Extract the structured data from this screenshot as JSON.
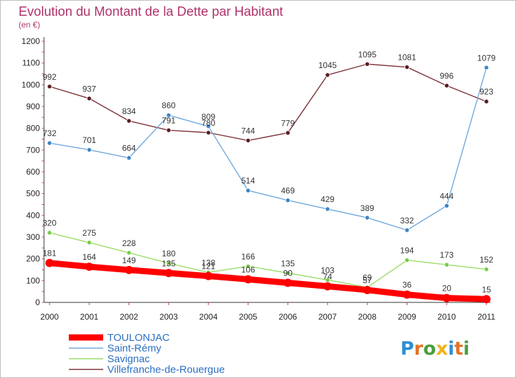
{
  "header": {
    "title": "Evolution du Montant de la Dette par Habitant",
    "subtitle": "(en €)"
  },
  "brand": {
    "text": "Proxiti",
    "letter_colors": [
      "#2b8fd6",
      "#e3742b",
      "#4a9e3c",
      "#f2b21b",
      "#2b8fd6",
      "#e3742b",
      "#4a9e3c"
    ]
  },
  "chart_data": {
    "type": "line",
    "title": "Evolution du Montant de la Dette par Habitant",
    "subtitle": "(en €)",
    "xlabel": "",
    "ylabel": "",
    "x": [
      "2000",
      "2001",
      "2002",
      "2003",
      "2004",
      "2005",
      "2006",
      "2007",
      "2008",
      "2009",
      "2010",
      "2011"
    ],
    "ylim": [
      0,
      1200
    ],
    "yticks": [
      0,
      100,
      200,
      300,
      400,
      500,
      600,
      700,
      800,
      900,
      1000,
      1100,
      1200
    ],
    "grid": false,
    "legend_position": "bottom-left",
    "series": [
      {
        "name": "TOULONJAC",
        "color": "#ff0000",
        "values": [
          181,
          164,
          149,
          135,
          121,
          106,
          90,
          74,
          57,
          36,
          20,
          15
        ]
      },
      {
        "name": "Saint-Rémy",
        "color": "#6fa8dc",
        "marker_color": "#3d85c6",
        "values": [
          732,
          701,
          664,
          860,
          809,
          514,
          469,
          429,
          389,
          332,
          444,
          1079
        ]
      },
      {
        "name": "Savignac",
        "color": "#99dd66",
        "marker_color": "#77cc44",
        "values": [
          320,
          275,
          228,
          180,
          138,
          166,
          135,
          103,
          69,
          194,
          173,
          152
        ]
      },
      {
        "name": "Villefranche-de-Rouergue",
        "color": "#7a3038",
        "marker_color": "#5a1d24",
        "values": [
          992,
          937,
          834,
          791,
          780,
          744,
          779,
          1045,
          1095,
          1081,
          996,
          923
        ]
      }
    ]
  }
}
